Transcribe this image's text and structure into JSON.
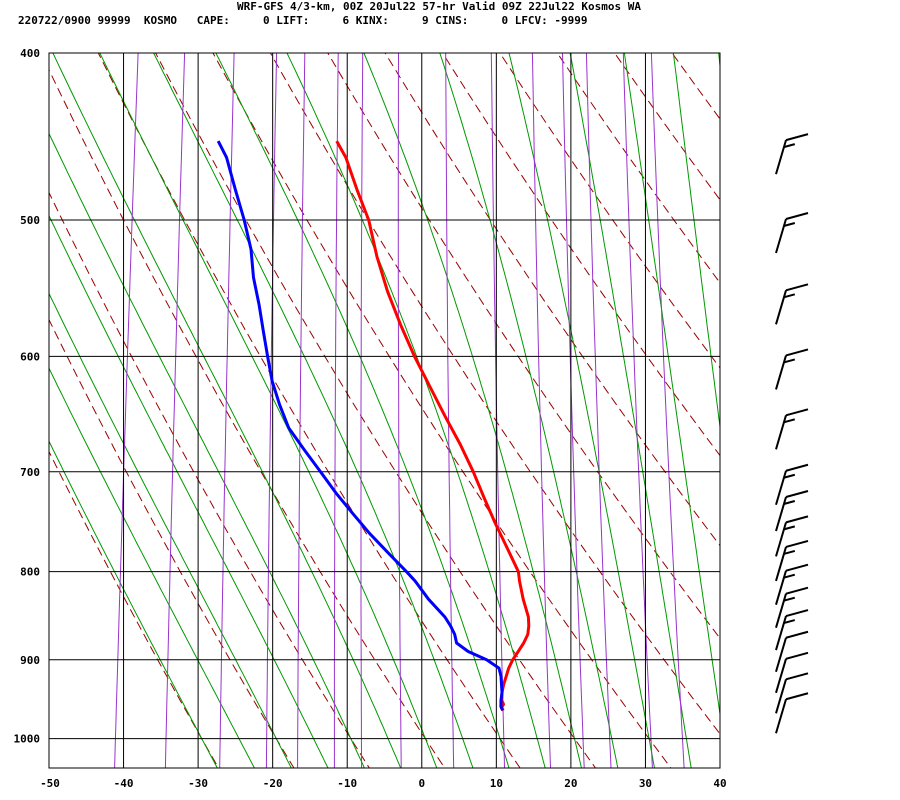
{
  "header": {
    "title": "WRF-GFS 4/3-km, 00Z 20Jul22 57-hr Valid 09Z 22Jul22 Kosmos WA",
    "stats": "220722/0900 99999  KOSMO   CAPE:     0 LIFT:     6 KINX:     9 CINS:     0 LFCV: -9999"
  },
  "chart_data": {
    "type": "skew-t",
    "xlabel": "",
    "ylabel": "",
    "x_ticks": [
      -50,
      -40,
      -30,
      -20,
      -10,
      0,
      10,
      20,
      30,
      40
    ],
    "y_ticks": [
      400,
      500,
      600,
      700,
      800,
      900,
      1000
    ],
    "xlim": [
      -50,
      40
    ],
    "ylim": [
      1040,
      400
    ],
    "y_scale": "log",
    "grid": true,
    "colors": {
      "temperature": "#ff0000",
      "dewpoint": "#0000ff",
      "dry_adiabat": "#990000",
      "moist_adiabat": "#009900",
      "mixing_ratio": "#9933cc",
      "grid": "#000000"
    },
    "series": [
      {
        "name": "",
        "role": "temperature",
        "pressure": [
          963,
          960,
          955,
          950,
          940,
          930,
          920,
          910,
          900,
          890,
          880,
          870,
          860,
          850,
          830,
          810,
          800,
          775,
          750,
          725,
          700,
          675,
          650,
          625,
          600,
          575,
          550,
          525,
          500,
          480,
          460,
          450
        ],
        "temp": [
          10.0,
          9.7,
          9.9,
          9.6,
          9.5,
          9.6,
          9.8,
          10.0,
          10.4,
          11.0,
          11.6,
          12.0,
          12.0,
          11.8,
          10.8,
          10.0,
          9.7,
          7.8,
          5.8,
          3.9,
          2.0,
          -0.2,
          -2.7,
          -5.2,
          -7.8,
          -10.2,
          -12.5,
          -14.5,
          -16.2,
          -18.3,
          -20.3,
          -21.8
        ]
      },
      {
        "name": "",
        "role": "dewpoint",
        "pressure": [
          963,
          958,
          950,
          940,
          930,
          920,
          910,
          900,
          890,
          880,
          870,
          860,
          850,
          830,
          810,
          800,
          780,
          760,
          740,
          720,
          700,
          680,
          660,
          640,
          620,
          600,
          580,
          560,
          540,
          520,
          500,
          480,
          460,
          450
        ],
        "temp": [
          9.9,
          9.6,
          9.5,
          9.5,
          9.3,
          9.1,
          8.7,
          6.9,
          4.3,
          2.6,
          2.2,
          1.5,
          0.6,
          -1.9,
          -4.0,
          -5.3,
          -8.1,
          -10.9,
          -13.5,
          -16.1,
          -18.5,
          -21.0,
          -23.5,
          -25.1,
          -26.5,
          -27.5,
          -28.5,
          -29.5,
          -30.7,
          -31.5,
          -32.9,
          -34.6,
          -36.3,
          -37.7
        ]
      }
    ],
    "wind_barbs": [
      {
        "pressure": 450,
        "speed_kt": 15
      },
      {
        "pressure": 500,
        "speed_kt": 15
      },
      {
        "pressure": 550,
        "speed_kt": 15
      },
      {
        "pressure": 600,
        "speed_kt": 15
      },
      {
        "pressure": 650,
        "speed_kt": 15
      },
      {
        "pressure": 700,
        "speed_kt": 15
      },
      {
        "pressure": 725,
        "speed_kt": 15
      },
      {
        "pressure": 750,
        "speed_kt": 15
      },
      {
        "pressure": 775,
        "speed_kt": 15
      },
      {
        "pressure": 800,
        "speed_kt": 15
      },
      {
        "pressure": 825,
        "speed_kt": 15
      },
      {
        "pressure": 850,
        "speed_kt": 15
      },
      {
        "pressure": 875,
        "speed_kt": 10
      },
      {
        "pressure": 900,
        "speed_kt": 10
      },
      {
        "pressure": 925,
        "speed_kt": 10
      },
      {
        "pressure": 950,
        "speed_kt": 10
      }
    ]
  }
}
